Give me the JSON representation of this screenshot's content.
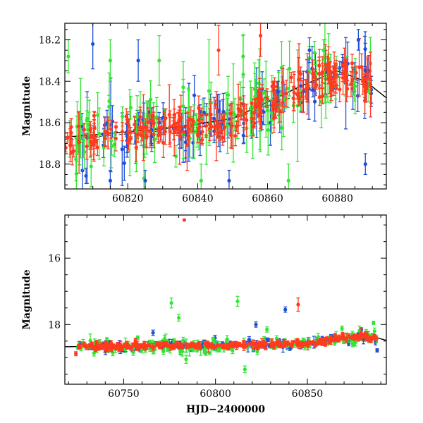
{
  "colors": {
    "blue": "#1f4fd8",
    "green": "#33e633",
    "red": "#ff3b1f",
    "model": "#000000"
  },
  "chart_data": [
    {
      "type": "scatter",
      "ylabel": "Magnitude",
      "xlabel": "",
      "xlim": [
        60802,
        60894
      ],
      "ylim": [
        18.92,
        18.12
      ],
      "y_inverted": true,
      "xticks": [
        60820,
        60840,
        60860,
        60880
      ],
      "yticks": [
        18.2,
        18.4,
        18.6,
        18.8
      ],
      "model": {
        "x": [
          60802,
          60830,
          60850,
          60870,
          60880,
          60888,
          60894
        ],
        "y": [
          18.67,
          18.63,
          18.58,
          18.42,
          18.35,
          18.4,
          18.48
        ]
      },
      "trend": {
        "x": [
          60802,
          60830,
          60850,
          60870,
          60880,
          60888
        ],
        "y": [
          18.68,
          18.64,
          18.58,
          18.46,
          18.38,
          18.42
        ]
      },
      "series": [
        {
          "color": "blue",
          "n": 110,
          "scatter": 0.055,
          "err": [
            0.03,
            0.11
          ],
          "seed": 11
        },
        {
          "color": "green",
          "n": 120,
          "scatter": 0.075,
          "err": [
            0.04,
            0.14
          ],
          "seed": 23
        },
        {
          "color": "red",
          "n": 230,
          "scatter": 0.045,
          "err": [
            0.02,
            0.08
          ],
          "seed": 37
        }
      ],
      "outliers": [
        {
          "color": "green",
          "x": 60803,
          "y": 18.28,
          "err": 0.08
        },
        {
          "color": "blue",
          "x": 60810,
          "y": 18.22,
          "err": 0.12
        },
        {
          "color": "green",
          "x": 60815,
          "y": 18.3,
          "err": 0.1
        },
        {
          "color": "blue",
          "x": 60823,
          "y": 18.3,
          "err": 0.1
        },
        {
          "color": "green",
          "x": 60829,
          "y": 18.3,
          "err": 0.12
        },
        {
          "color": "red",
          "x": 60846,
          "y": 18.25,
          "err": 0.12
        },
        {
          "color": "green",
          "x": 60853,
          "y": 18.28,
          "err": 0.1
        },
        {
          "color": "red",
          "x": 60858,
          "y": 18.18,
          "err": 0.1
        },
        {
          "color": "blue",
          "x": 60863,
          "y": 18.45,
          "err": 0.05
        },
        {
          "color": "blue",
          "x": 60872,
          "y": 18.25,
          "err": 0.06
        },
        {
          "color": "green",
          "x": 60876,
          "y": 18.25,
          "err": 0.05
        },
        {
          "color": "red",
          "x": 60882,
          "y": 18.32,
          "err": 0.08
        },
        {
          "color": "blue",
          "x": 60886,
          "y": 18.2,
          "err": 0.05
        },
        {
          "color": "green",
          "x": 60889,
          "y": 18.45,
          "err": 0.05
        },
        {
          "color": "blue",
          "x": 60888,
          "y": 18.8,
          "err": 0.05
        },
        {
          "color": "blue",
          "x": 60815,
          "y": 18.88,
          "err": 0.05
        },
        {
          "color": "blue",
          "x": 60825,
          "y": 18.88,
          "err": 0.05
        },
        {
          "color": "blue",
          "x": 60849,
          "y": 18.88,
          "err": 0.05
        },
        {
          "color": "green",
          "x": 60866,
          "y": 18.88,
          "err": 0.08
        },
        {
          "color": "green",
          "x": 60841,
          "y": 18.88,
          "err": 0.08
        }
      ]
    },
    {
      "type": "scatter",
      "ylabel": "Magnitude",
      "xlabel": "HJD−2400000",
      "xlim": [
        60718,
        60893
      ],
      "ylim": [
        19.8,
        14.7
      ],
      "y_inverted": true,
      "xticks": [
        60750,
        60800,
        60850
      ],
      "yticks": [
        16,
        18
      ],
      "model": {
        "x": [
          60718,
          60800,
          60850,
          60870,
          60880,
          60888,
          60893
        ],
        "y": [
          18.67,
          18.63,
          18.58,
          18.42,
          18.35,
          18.4,
          18.48
        ]
      },
      "trend": null,
      "series": [
        {
          "color": "blue",
          "n": 150,
          "scatter": 0.07,
          "err": [
            0.03,
            0.09
          ],
          "seed": 51
        },
        {
          "color": "green",
          "n": 170,
          "scatter": 0.1,
          "err": [
            0.04,
            0.11
          ],
          "seed": 63
        },
        {
          "color": "red",
          "n": 330,
          "scatter": 0.05,
          "err": [
            0.02,
            0.07
          ],
          "seed": 77
        }
      ],
      "outliers": [
        {
          "color": "red",
          "x": 60783,
          "y": 14.85,
          "err": 0.0
        },
        {
          "color": "green",
          "x": 60776,
          "y": 17.35,
          "err": 0.15
        },
        {
          "color": "green",
          "x": 60780,
          "y": 17.8,
          "err": 0.1
        },
        {
          "color": "green",
          "x": 60812,
          "y": 17.3,
          "err": 0.15
        },
        {
          "color": "red",
          "x": 60845,
          "y": 17.4,
          "err": 0.2
        },
        {
          "color": "blue",
          "x": 60838,
          "y": 17.55,
          "err": 0.08
        },
        {
          "color": "blue",
          "x": 60766,
          "y": 18.25,
          "err": 0.08
        },
        {
          "color": "blue",
          "x": 60822,
          "y": 18.0,
          "err": 0.08
        },
        {
          "color": "green",
          "x": 60828,
          "y": 18.15,
          "err": 0.08
        },
        {
          "color": "green",
          "x": 60816,
          "y": 19.35,
          "err": 0.1
        },
        {
          "color": "green",
          "x": 60784,
          "y": 19.05,
          "err": 0.12
        },
        {
          "color": "red",
          "x": 60724,
          "y": 18.88,
          "err": 0.06
        },
        {
          "color": "green",
          "x": 60886,
          "y": 17.95,
          "err": 0.05
        },
        {
          "color": "blue",
          "x": 60888,
          "y": 18.78,
          "err": 0.05
        }
      ]
    }
  ]
}
